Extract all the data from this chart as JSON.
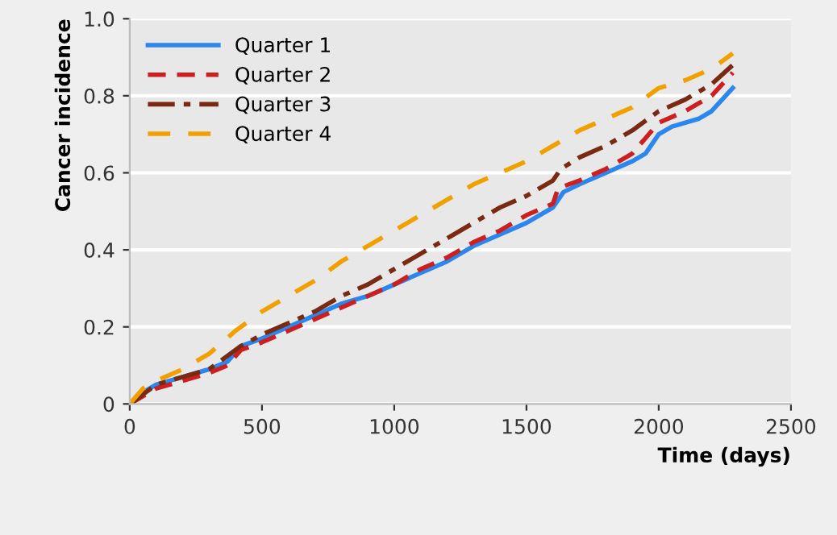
{
  "chart_data": {
    "type": "line",
    "xlabel": "Time (days)",
    "ylabel": "Cancer incidence",
    "xlim": [
      0,
      2500
    ],
    "xticks": [
      0,
      500,
      1000,
      1500,
      2000,
      2500
    ],
    "ylim": [
      0,
      1.0
    ],
    "yticks": [
      {
        "value": 0,
        "label": "0"
      },
      0.2,
      0.4,
      0.6,
      0.8,
      {
        "value": 1,
        "label": "1.0"
      }
    ],
    "grid": "y",
    "legend": "top left",
    "marker": "none",
    "series": [
      {
        "name": "Quarter 1",
        "color": "#2b86ee",
        "line_style": "solid",
        "x": [
          0,
          50,
          100,
          200,
          300,
          370,
          420,
          500,
          600,
          700,
          800,
          900,
          1000,
          1100,
          1200,
          1300,
          1400,
          1500,
          1600,
          1640,
          1700,
          1800,
          1900,
          1950,
          2000,
          2050,
          2150,
          2200,
          2280
        ],
        "values": [
          0,
          0.03,
          0.05,
          0.07,
          0.09,
          0.11,
          0.15,
          0.17,
          0.2,
          0.23,
          0.26,
          0.28,
          0.31,
          0.34,
          0.37,
          0.41,
          0.44,
          0.47,
          0.51,
          0.55,
          0.57,
          0.6,
          0.63,
          0.65,
          0.7,
          0.72,
          0.74,
          0.76,
          0.82
        ]
      },
      {
        "name": "Quarter 2",
        "color": "#cc1f1f",
        "line_style": "dashed",
        "x": [
          0,
          100,
          200,
          300,
          370,
          420,
          500,
          600,
          700,
          800,
          900,
          1000,
          1100,
          1200,
          1300,
          1400,
          1500,
          1600,
          1620,
          1700,
          1800,
          1900,
          1950,
          2000,
          2100,
          2200,
          2280
        ],
        "values": [
          0,
          0.04,
          0.06,
          0.08,
          0.1,
          0.14,
          0.16,
          0.19,
          0.22,
          0.25,
          0.28,
          0.31,
          0.35,
          0.38,
          0.42,
          0.45,
          0.49,
          0.52,
          0.56,
          0.58,
          0.61,
          0.65,
          0.69,
          0.73,
          0.76,
          0.8,
          0.86
        ]
      },
      {
        "name": "Quarter 3",
        "color": "#7a2a12",
        "line_style": "dashdot",
        "x": [
          0,
          100,
          200,
          300,
          420,
          500,
          600,
          700,
          800,
          900,
          1000,
          1100,
          1200,
          1300,
          1400,
          1500,
          1600,
          1630,
          1700,
          1800,
          1900,
          2000,
          2100,
          2200,
          2280
        ],
        "values": [
          0,
          0.05,
          0.07,
          0.09,
          0.15,
          0.18,
          0.21,
          0.24,
          0.28,
          0.31,
          0.35,
          0.39,
          0.43,
          0.47,
          0.51,
          0.54,
          0.58,
          0.61,
          0.64,
          0.67,
          0.71,
          0.76,
          0.79,
          0.83,
          0.88
        ]
      },
      {
        "name": "Quarter 4",
        "color": "#f0a000",
        "line_style": "longdash",
        "x": [
          0,
          50,
          100,
          200,
          300,
          400,
          500,
          600,
          700,
          800,
          900,
          1000,
          1100,
          1200,
          1300,
          1400,
          1500,
          1600,
          1700,
          1800,
          1900,
          2000,
          2100,
          2200,
          2280
        ],
        "values": [
          0,
          0.04,
          0.06,
          0.09,
          0.13,
          0.19,
          0.24,
          0.28,
          0.32,
          0.37,
          0.41,
          0.45,
          0.49,
          0.53,
          0.57,
          0.6,
          0.63,
          0.67,
          0.71,
          0.74,
          0.77,
          0.82,
          0.84,
          0.87,
          0.91
        ]
      }
    ]
  }
}
